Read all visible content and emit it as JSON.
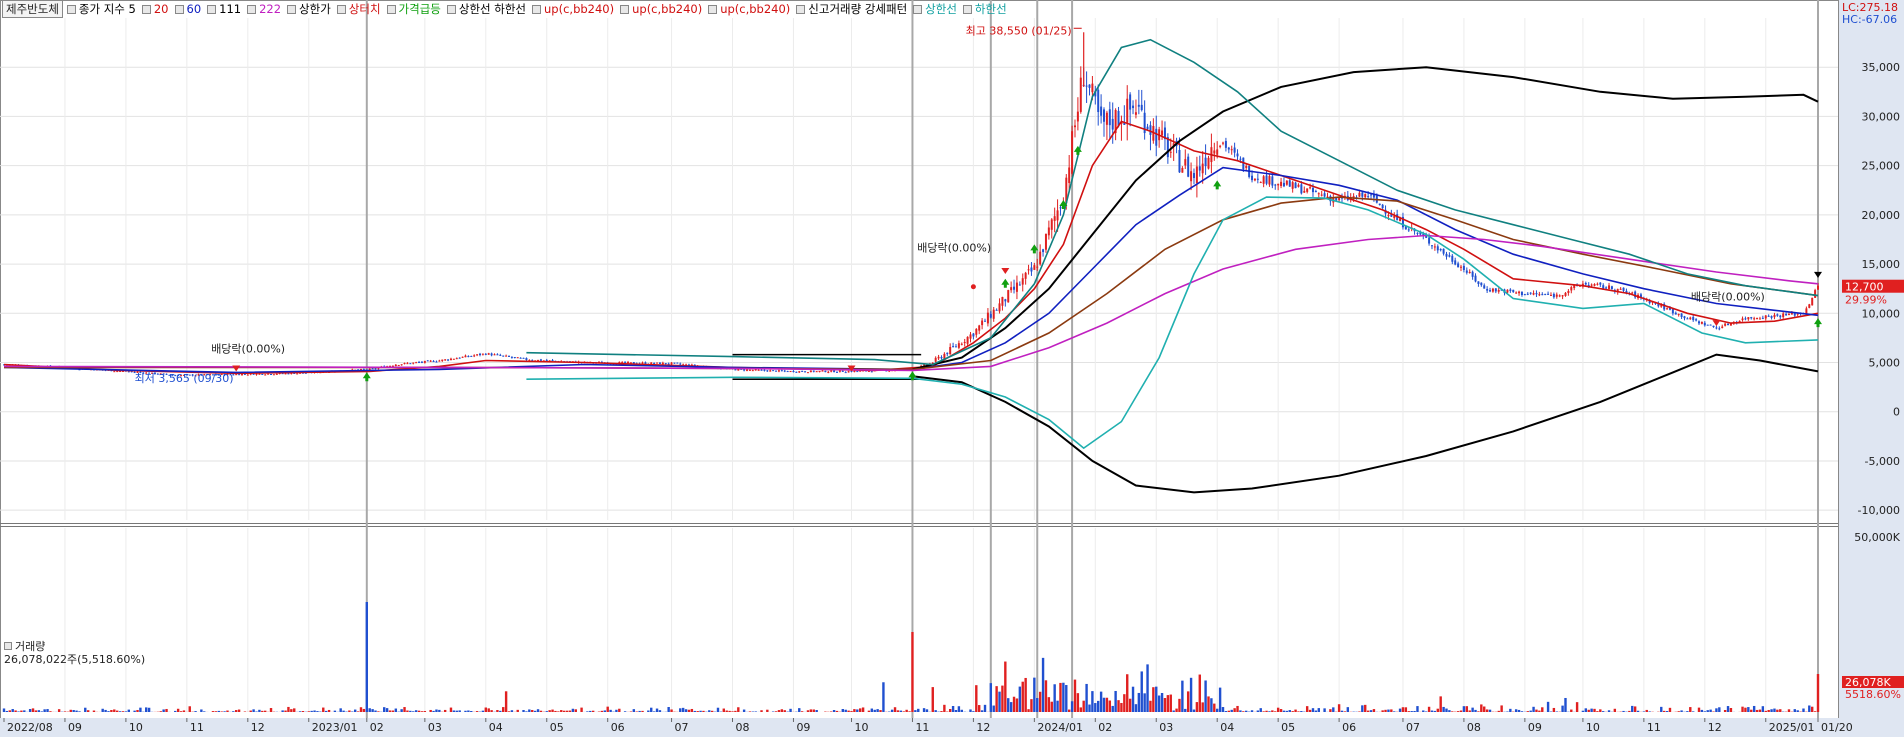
{
  "header": {
    "stock_name": "제주반도체",
    "legend_items": [
      {
        "label": "종가 지수 5",
        "color": "#000000"
      },
      {
        "label": "20",
        "color": "#d01010"
      },
      {
        "label": "60",
        "color": "#1020c0"
      },
      {
        "label": "111",
        "color": "#000000"
      },
      {
        "label": "222",
        "color": "#c020c0"
      },
      {
        "label": "상한가",
        "color": "#000000"
      },
      {
        "label": "상터치",
        "color": "#d01010"
      },
      {
        "label": "가격급등",
        "color": "#10a010"
      },
      {
        "label": "상한선  하한선",
        "color": "#000000"
      },
      {
        "label": "up(c,bb240)",
        "color": "#d01010"
      },
      {
        "label": "up(c,bb240)",
        "color": "#d01010"
      },
      {
        "label": "up(c,bb240)",
        "color": "#d01010"
      },
      {
        "label": "신고거래량 강세패턴",
        "color": "#000000"
      },
      {
        "label": "상한선",
        "color": "#10a0a0"
      },
      {
        "label": "하한선",
        "color": "#10a0a0"
      }
    ]
  },
  "right_panel": {
    "lc": "LC:275.18",
    "hc": "HC:-67.06",
    "price_label": "12,700",
    "pct_label": "29.99%",
    "vol_label": "26,078K",
    "vol_pct": "5518.60%",
    "vol_top": "50,000K"
  },
  "annotations": {
    "high": "최고 38,550 (01/25)",
    "low": "최저 3,565 (09/30)",
    "ex_div_1": "배당락(0.00%)",
    "ex_div_2": "배당락(0.00%)",
    "ex_div_3": "배당락(0.00%)"
  },
  "volume_legend": {
    "title": "거래량",
    "value": "26,078,022주(5,518.60%)"
  },
  "colors": {
    "up": "#e02020",
    "down": "#2050d0",
    "ma5": "#000000",
    "ma20": "#d01010",
    "ma60": "#1020c0",
    "ma111": "#000000",
    "ma222": "#c020c0",
    "ma_brown": "#8b3a10",
    "band_teal": "#108080",
    "band_cyan": "#20b0b0",
    "axis_bg": "#dfe6f2"
  },
  "chart_data": {
    "type": "line",
    "title": "제주반도체",
    "ylim": [
      -11000,
      40000
    ],
    "y_ticks": [
      "35,000",
      "30,000",
      "25,000",
      "20,000",
      "15,000",
      "10,000",
      "5,000",
      "0",
      "-5,000",
      "-10,000"
    ],
    "y_tick_values": [
      35000,
      30000,
      25000,
      20000,
      15000,
      10000,
      5000,
      0,
      -5000,
      -10000
    ],
    "x_ticks": [
      "2022/08",
      "09",
      "10",
      "11",
      "12",
      "2023/01",
      "02",
      "03",
      "04",
      "05",
      "06",
      "07",
      "08",
      "09",
      "10",
      "11",
      "12",
      "2024/01",
      "02",
      "03",
      "04",
      "05",
      "06",
      "07",
      "08",
      "09",
      "10",
      "11",
      "12",
      "2025/01",
      "01/20"
    ],
    "x_index": [
      0,
      21,
      42,
      63,
      84,
      105,
      125,
      145,
      166,
      187,
      208,
      230,
      251,
      272,
      292,
      313,
      334,
      355,
      376,
      397,
      418,
      439,
      460,
      482,
      503,
      524,
      544,
      565,
      586,
      607,
      625
    ],
    "n_days": 626,
    "series": [
      {
        "name": "종가",
        "color": "#1f4fd0",
        "points": [
          [
            0,
            4800
          ],
          [
            20,
            4500
          ],
          [
            42,
            4100
          ],
          [
            60,
            3700
          ],
          [
            80,
            3800
          ],
          [
            100,
            3900
          ],
          [
            126,
            4300
          ],
          [
            135,
            4800
          ],
          [
            150,
            5200
          ],
          [
            166,
            5900
          ],
          [
            180,
            5300
          ],
          [
            200,
            5000
          ],
          [
            230,
            4900
          ],
          [
            251,
            4300
          ],
          [
            270,
            4100
          ],
          [
            292,
            4100
          ],
          [
            313,
            4300
          ],
          [
            320,
            5000
          ],
          [
            334,
            8000
          ],
          [
            345,
            11500
          ],
          [
            355,
            14500
          ],
          [
            365,
            22000
          ],
          [
            372,
            34500
          ],
          [
            378,
            29000
          ],
          [
            390,
            31000
          ],
          [
            400,
            27000
          ],
          [
            410,
            24000
          ],
          [
            418,
            28000
          ],
          [
            430,
            24000
          ],
          [
            445,
            22800
          ],
          [
            460,
            21500
          ],
          [
            470,
            22000
          ],
          [
            480,
            19500
          ],
          [
            490,
            17500
          ],
          [
            503,
            14500
          ],
          [
            510,
            12500
          ],
          [
            524,
            12000
          ],
          [
            535,
            11800
          ],
          [
            544,
            13000
          ],
          [
            555,
            12500
          ],
          [
            565,
            11500
          ],
          [
            580,
            9500
          ],
          [
            590,
            8500
          ],
          [
            600,
            9500
          ],
          [
            612,
            9800
          ],
          [
            620,
            10000
          ],
          [
            625,
            12700
          ]
        ]
      },
      {
        "name": "20",
        "color": "#d01010",
        "points": [
          [
            0,
            4800
          ],
          [
            40,
            4200
          ],
          [
            80,
            3900
          ],
          [
            126,
            4100
          ],
          [
            150,
            4600
          ],
          [
            166,
            5200
          ],
          [
            200,
            5000
          ],
          [
            251,
            4500
          ],
          [
            300,
            4200
          ],
          [
            320,
            4600
          ],
          [
            334,
            7000
          ],
          [
            345,
            9500
          ],
          [
            355,
            12500
          ],
          [
            365,
            17000
          ],
          [
            375,
            25000
          ],
          [
            385,
            29500
          ],
          [
            395,
            28500
          ],
          [
            410,
            26500
          ],
          [
            425,
            25500
          ],
          [
            445,
            23500
          ],
          [
            460,
            22000
          ],
          [
            475,
            20500
          ],
          [
            490,
            18500
          ],
          [
            503,
            16500
          ],
          [
            520,
            13500
          ],
          [
            544,
            12800
          ],
          [
            560,
            12000
          ],
          [
            580,
            10000
          ],
          [
            595,
            9000
          ],
          [
            610,
            9200
          ],
          [
            625,
            10000
          ]
        ]
      },
      {
        "name": "60",
        "color": "#1020c0",
        "points": [
          [
            0,
            4500
          ],
          [
            80,
            4000
          ],
          [
            150,
            4300
          ],
          [
            200,
            4800
          ],
          [
            251,
            4500
          ],
          [
            313,
            4300
          ],
          [
            330,
            5000
          ],
          [
            345,
            7000
          ],
          [
            360,
            10000
          ],
          [
            375,
            14500
          ],
          [
            390,
            19000
          ],
          [
            405,
            22000
          ],
          [
            420,
            24800
          ],
          [
            440,
            24000
          ],
          [
            460,
            23000
          ],
          [
            480,
            21500
          ],
          [
            500,
            18500
          ],
          [
            520,
            16000
          ],
          [
            544,
            14000
          ],
          [
            565,
            12500
          ],
          [
            590,
            11000
          ],
          [
            610,
            10300
          ],
          [
            625,
            9800
          ]
        ]
      },
      {
        "name": "111",
        "color": "#000000",
        "points": [
          [
            313,
            4300
          ],
          [
            330,
            5500
          ],
          [
            345,
            8500
          ],
          [
            360,
            12500
          ],
          [
            375,
            18000
          ],
          [
            390,
            23500
          ],
          [
            405,
            27500
          ],
          [
            420,
            30500
          ],
          [
            440,
            33000
          ],
          [
            465,
            34500
          ],
          [
            490,
            35000
          ],
          [
            520,
            34000
          ],
          [
            550,
            32500
          ],
          [
            575,
            31800
          ],
          [
            600,
            32000
          ],
          [
            620,
            32200
          ],
          [
            625,
            31500
          ]
        ]
      },
      {
        "name": "111-lower",
        "color": "#000000",
        "points": [
          [
            313,
            3600
          ],
          [
            330,
            3000
          ],
          [
            345,
            1000
          ],
          [
            360,
            -1500
          ],
          [
            375,
            -5000
          ],
          [
            390,
            -7500
          ],
          [
            410,
            -8200
          ],
          [
            430,
            -7800
          ],
          [
            460,
            -6500
          ],
          [
            490,
            -4500
          ],
          [
            520,
            -2000
          ],
          [
            550,
            1000
          ],
          [
            575,
            4000
          ],
          [
            590,
            5800
          ],
          [
            605,
            5200
          ],
          [
            625,
            4100
          ]
        ]
      },
      {
        "name": "brown",
        "color": "#8b3a10",
        "points": [
          [
            0,
            4500
          ],
          [
            150,
            4500
          ],
          [
            251,
            4400
          ],
          [
            313,
            4300
          ],
          [
            340,
            5200
          ],
          [
            360,
            8000
          ],
          [
            380,
            12000
          ],
          [
            400,
            16500
          ],
          [
            420,
            19500
          ],
          [
            440,
            21200
          ],
          [
            460,
            21800
          ],
          [
            480,
            21400
          ],
          [
            500,
            19500
          ],
          [
            520,
            17500
          ],
          [
            544,
            16000
          ],
          [
            570,
            14500
          ],
          [
            595,
            13000
          ],
          [
            615,
            12200
          ],
          [
            625,
            11800
          ]
        ]
      },
      {
        "name": "222",
        "color": "#c020c0",
        "points": [
          [
            0,
            4600
          ],
          [
            150,
            4500
          ],
          [
            251,
            4400
          ],
          [
            313,
            4200
          ],
          [
            340,
            4600
          ],
          [
            360,
            6500
          ],
          [
            380,
            9000
          ],
          [
            400,
            12000
          ],
          [
            420,
            14500
          ],
          [
            445,
            16500
          ],
          [
            470,
            17500
          ],
          [
            490,
            17900
          ],
          [
            510,
            17500
          ],
          [
            530,
            16800
          ],
          [
            560,
            15500
          ],
          [
            590,
            14200
          ],
          [
            615,
            13300
          ],
          [
            625,
            13000
          ]
        ]
      },
      {
        "name": "teal-upper",
        "color": "#108080",
        "points": [
          [
            180,
            6000
          ],
          [
            251,
            5600
          ],
          [
            300,
            5300
          ],
          [
            320,
            4800
          ],
          [
            340,
            7500
          ],
          [
            355,
            13000
          ],
          [
            365,
            20000
          ],
          [
            375,
            32000
          ],
          [
            385,
            37000
          ],
          [
            395,
            37800
          ],
          [
            410,
            35500
          ],
          [
            425,
            32500
          ],
          [
            440,
            28500
          ],
          [
            460,
            25500
          ],
          [
            480,
            22500
          ],
          [
            500,
            20500
          ],
          [
            520,
            19000
          ],
          [
            540,
            17500
          ],
          [
            560,
            16000
          ],
          [
            580,
            14000
          ],
          [
            600,
            12800
          ],
          [
            625,
            11800
          ]
        ]
      },
      {
        "name": "cyan-lower",
        "color": "#20b0b0",
        "points": [
          [
            180,
            3300
          ],
          [
            251,
            3500
          ],
          [
            313,
            3400
          ],
          [
            330,
            2800
          ],
          [
            345,
            1500
          ],
          [
            360,
            -800
          ],
          [
            372,
            -3700
          ],
          [
            385,
            -1000
          ],
          [
            398,
            5500
          ],
          [
            410,
            14000
          ],
          [
            420,
            19500
          ],
          [
            435,
            21800
          ],
          [
            455,
            21700
          ],
          [
            470,
            20500
          ],
          [
            490,
            18000
          ],
          [
            503,
            15500
          ],
          [
            520,
            11500
          ],
          [
            544,
            10500
          ],
          [
            565,
            11000
          ],
          [
            585,
            8000
          ],
          [
            600,
            7000
          ],
          [
            625,
            7300
          ]
        ]
      }
    ]
  }
}
